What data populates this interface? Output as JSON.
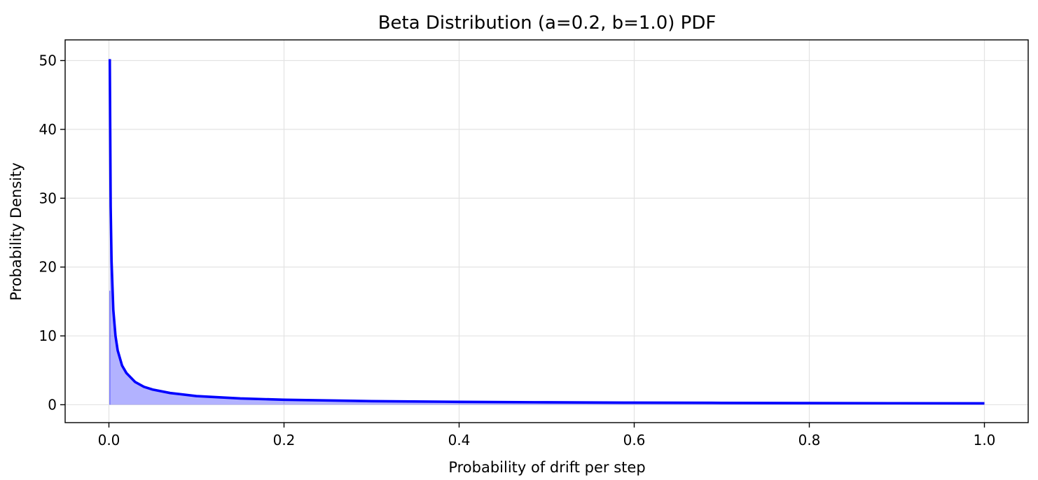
{
  "chart_data": {
    "type": "area",
    "title": "Beta Distribution (a=0.2, b=1.0) PDF",
    "xlabel": "Probability of drift per step",
    "ylabel": "Probability Density",
    "xlim": [
      -0.05,
      1.05
    ],
    "ylim": [
      -2.6,
      53.0
    ],
    "xticks": [
      0.0,
      0.2,
      0.4,
      0.6,
      0.8,
      1.0
    ],
    "xtick_labels": [
      "0.0",
      "0.2",
      "0.4",
      "0.6",
      "0.8",
      "1.0"
    ],
    "yticks": [
      0,
      10,
      20,
      30,
      40,
      50
    ],
    "ytick_labels": [
      "0",
      "10",
      "20",
      "30",
      "40",
      "50"
    ],
    "grid": true,
    "legend": "none",
    "series": [
      {
        "x": [
          0.001,
          0.002,
          0.003,
          0.005,
          0.0075,
          0.01,
          0.015,
          0.02,
          0.03,
          0.04,
          0.05,
          0.07,
          0.1,
          0.15,
          0.2,
          0.3,
          0.4,
          0.5,
          0.6,
          0.7,
          0.8,
          0.9,
          1.0
        ],
        "y": [
          50.2,
          28.8,
          20.9,
          13.8,
          10.0,
          7.9,
          5.7,
          4.6,
          3.3,
          2.6,
          2.2,
          1.7,
          1.26,
          0.91,
          0.72,
          0.52,
          0.42,
          0.35,
          0.3,
          0.27,
          0.24,
          0.22,
          0.2
        ],
        "color": "#0000ff",
        "fill_color": "#0000ff",
        "fill_opacity": 0.3
      }
    ]
  }
}
